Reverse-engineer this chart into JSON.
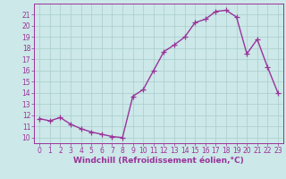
{
  "x": [
    0,
    1,
    2,
    3,
    4,
    5,
    6,
    7,
    8,
    9,
    10,
    11,
    12,
    13,
    14,
    15,
    16,
    17,
    18,
    19,
    20,
    21,
    22,
    23
  ],
  "y": [
    11.7,
    11.5,
    11.8,
    11.2,
    10.8,
    10.5,
    10.3,
    10.1,
    10.0,
    13.7,
    14.3,
    16.0,
    17.7,
    18.3,
    19.0,
    20.3,
    20.6,
    21.3,
    21.4,
    20.8,
    17.5,
    18.8,
    16.3,
    14.0
  ],
  "line_color": "#993399",
  "marker": "+",
  "markersize": 4,
  "markeredgewidth": 0.9,
  "linewidth": 1.0,
  "bg_color": "#cce8e8",
  "grid_color": "#aacccc",
  "xlabel": "Windchill (Refroidissement éolien,°C)",
  "ylabel_ticks": [
    10,
    11,
    12,
    13,
    14,
    15,
    16,
    17,
    18,
    19,
    20,
    21
  ],
  "ylim": [
    9.5,
    22.0
  ],
  "xlim": [
    -0.5,
    23.5
  ],
  "tick_label_fontsize": 5.5,
  "xlabel_fontsize": 6.5
}
